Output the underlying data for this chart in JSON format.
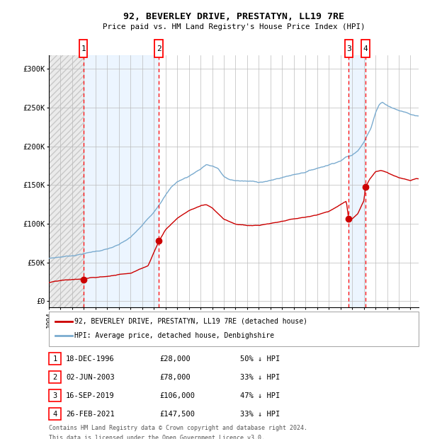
{
  "title": "92, BEVERLEY DRIVE, PRESTATYN, LL19 7RE",
  "subtitle": "Price paid vs. HM Land Registry's House Price Index (HPI)",
  "y_ticks": [
    0,
    50000,
    100000,
    150000,
    200000,
    250000,
    300000
  ],
  "y_labels": [
    "£0",
    "£50K",
    "£100K",
    "£150K",
    "£200K",
    "£250K",
    "£300K"
  ],
  "ylim": [
    -8000,
    318000
  ],
  "xlim_start": 1994.0,
  "xlim_end": 2025.7,
  "sale_color": "#cc0000",
  "hpi_color": "#7aabcf",
  "hatch_color": "#d8d8d8",
  "shade_color": "#ddeeff",
  "purchases": [
    {
      "num": 1,
      "date_x": 1996.96,
      "price": 28000
    },
    {
      "num": 2,
      "date_x": 2003.42,
      "price": 78000
    },
    {
      "num": 3,
      "date_x": 2019.71,
      "price": 106000
    },
    {
      "num": 4,
      "date_x": 2021.15,
      "price": 147500
    }
  ],
  "hpi_keypoints": [
    [
      1994.0,
      55000
    ],
    [
      1995.0,
      57000
    ],
    [
      1996.0,
      59000
    ],
    [
      1997.0,
      62000
    ],
    [
      1998.0,
      65000
    ],
    [
      1999.0,
      68000
    ],
    [
      2000.0,
      73000
    ],
    [
      2001.0,
      82000
    ],
    [
      2002.0,
      97000
    ],
    [
      2003.0,
      115000
    ],
    [
      2004.0,
      138000
    ],
    [
      2004.5,
      148000
    ],
    [
      2005.0,
      155000
    ],
    [
      2006.0,
      162000
    ],
    [
      2007.0,
      172000
    ],
    [
      2007.5,
      178000
    ],
    [
      2008.0,
      176000
    ],
    [
      2008.5,
      173000
    ],
    [
      2009.0,
      162000
    ],
    [
      2009.5,
      158000
    ],
    [
      2010.0,
      157000
    ],
    [
      2011.0,
      156000
    ],
    [
      2012.0,
      155000
    ],
    [
      2013.0,
      157000
    ],
    [
      2014.0,
      161000
    ],
    [
      2015.0,
      165000
    ],
    [
      2016.0,
      169000
    ],
    [
      2017.0,
      174000
    ],
    [
      2018.0,
      179000
    ],
    [
      2019.0,
      185000
    ],
    [
      2019.5,
      190000
    ],
    [
      2020.0,
      192000
    ],
    [
      2020.5,
      198000
    ],
    [
      2021.0,
      210000
    ],
    [
      2021.3,
      220000
    ],
    [
      2021.6,
      228000
    ],
    [
      2022.0,
      248000
    ],
    [
      2022.3,
      258000
    ],
    [
      2022.6,
      262000
    ],
    [
      2023.0,
      258000
    ],
    [
      2023.5,
      255000
    ],
    [
      2024.0,
      252000
    ],
    [
      2024.5,
      250000
    ],
    [
      2025.0,
      247000
    ],
    [
      2025.5,
      245000
    ]
  ],
  "sale_keypoints": [
    [
      1994.0,
      24000
    ],
    [
      1995.0,
      26000
    ],
    [
      1996.0,
      27000
    ],
    [
      1996.96,
      28000
    ],
    [
      1997.5,
      29000
    ],
    [
      1999.0,
      31000
    ],
    [
      2001.0,
      36000
    ],
    [
      2002.5,
      46000
    ],
    [
      2003.42,
      78000
    ],
    [
      2004.0,
      93000
    ],
    [
      2005.0,
      108000
    ],
    [
      2006.0,
      118000
    ],
    [
      2007.0,
      124000
    ],
    [
      2007.5,
      126000
    ],
    [
      2008.0,
      122000
    ],
    [
      2009.0,
      108000
    ],
    [
      2010.0,
      102000
    ],
    [
      2011.0,
      100000
    ],
    [
      2012.0,
      100000
    ],
    [
      2013.0,
      102000
    ],
    [
      2014.0,
      104000
    ],
    [
      2015.0,
      107000
    ],
    [
      2016.0,
      109000
    ],
    [
      2017.0,
      112000
    ],
    [
      2018.0,
      117000
    ],
    [
      2019.0,
      126000
    ],
    [
      2019.5,
      130000
    ],
    [
      2019.71,
      106000
    ],
    [
      2020.0,
      107000
    ],
    [
      2020.5,
      114000
    ],
    [
      2021.0,
      130000
    ],
    [
      2021.15,
      147500
    ],
    [
      2021.5,
      158000
    ],
    [
      2022.0,
      168000
    ],
    [
      2022.5,
      170000
    ],
    [
      2023.0,
      168000
    ],
    [
      2023.5,
      164000
    ],
    [
      2024.0,
      161000
    ],
    [
      2024.5,
      159000
    ],
    [
      2025.0,
      157000
    ],
    [
      2025.5,
      160000
    ]
  ],
  "legend_sale_label": "92, BEVERLEY DRIVE, PRESTATYN, LL19 7RE (detached house)",
  "legend_hpi_label": "HPI: Average price, detached house, Denbighshire",
  "table_rows": [
    {
      "num": "1",
      "date": "18-DEC-1996",
      "price": "£28,000",
      "pct": "50% ↓ HPI"
    },
    {
      "num": "2",
      "date": "02-JUN-2003",
      "price": "£78,000",
      "pct": "33% ↓ HPI"
    },
    {
      "num": "3",
      "date": "16-SEP-2019",
      "price": "£106,000",
      "pct": "47% ↓ HPI"
    },
    {
      "num": "4",
      "date": "26-FEB-2021",
      "price": "£147,500",
      "pct": "33% ↓ HPI"
    }
  ],
  "footer_line1": "Contains HM Land Registry data © Crown copyright and database right 2024.",
  "footer_line2": "This data is licensed under the Open Government Licence v3.0."
}
